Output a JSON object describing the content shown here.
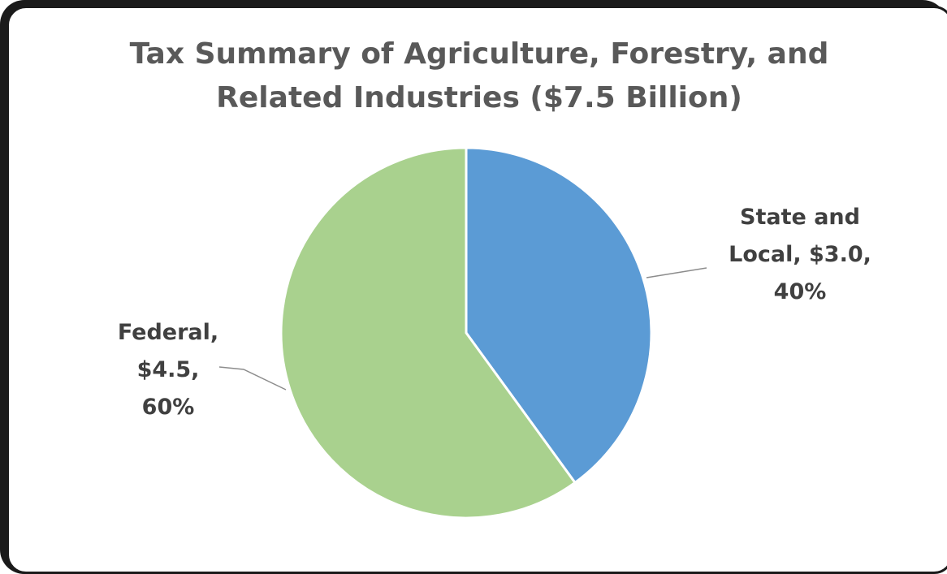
{
  "chart_data": {
    "type": "pie",
    "title_lines": [
      "Tax Summary of Agriculture, Forestry, and",
      "Related Industries ($7.5 Billion)"
    ],
    "slices": [
      {
        "name": "State and Local",
        "value": 3.0,
        "percent": 40,
        "color": "#5b9bd5",
        "label_lines": [
          "State and",
          "Local, $3.0,",
          "40%"
        ]
      },
      {
        "name": "Federal",
        "value": 4.5,
        "percent": 60,
        "color": "#a9d18e",
        "label_lines": [
          "Federal,",
          "$4.5,",
          "60%"
        ]
      }
    ],
    "start_angle_deg": 0,
    "direction": "clockwise",
    "legend": "none",
    "leader_line_color": "#8c8c8c",
    "slice_border_color": "#ffffff"
  }
}
